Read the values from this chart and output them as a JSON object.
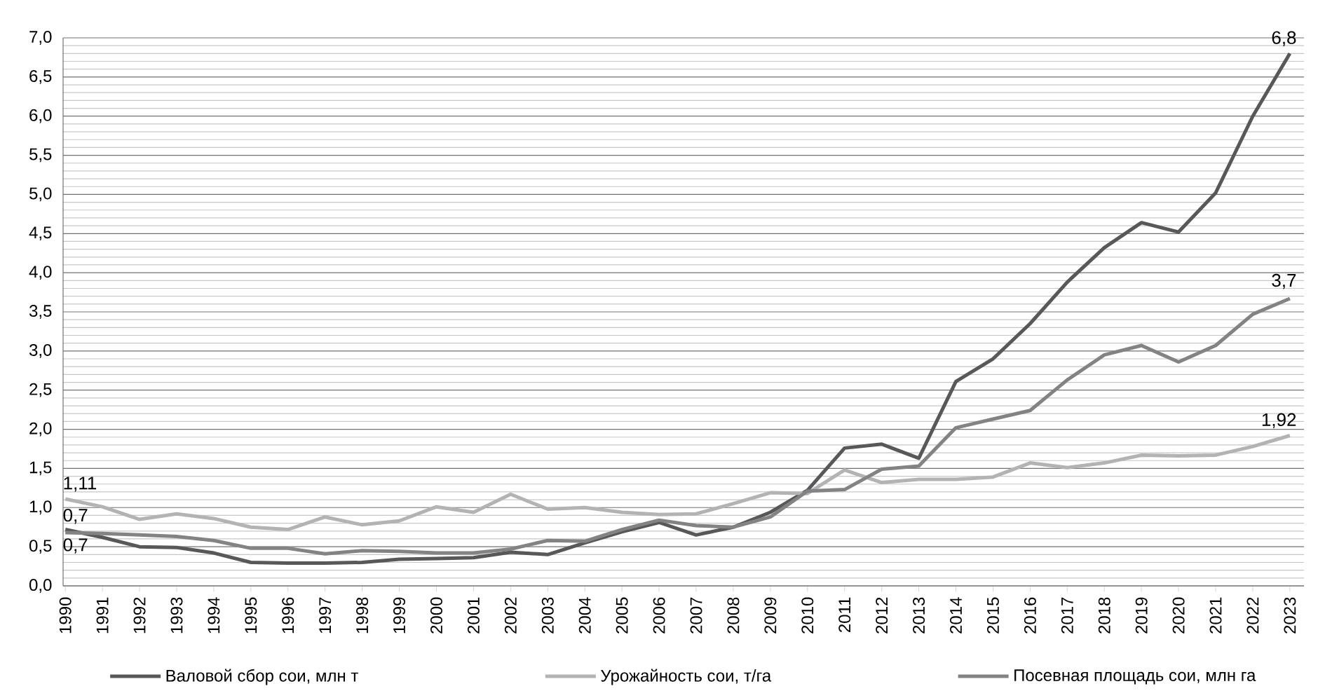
{
  "chart_data": {
    "type": "line",
    "categories": [
      "1990",
      "1991",
      "1992",
      "1993",
      "1994",
      "1995",
      "1996",
      "1997",
      "1998",
      "1999",
      "2000",
      "2001",
      "2002",
      "2003",
      "2004",
      "2005",
      "2006",
      "2007",
      "2008",
      "2009",
      "2010",
      "2011",
      "2012",
      "2013",
      "2014",
      "2015",
      "2016",
      "2017",
      "2018",
      "2019",
      "2020",
      "2021",
      "2022",
      "2023"
    ],
    "series": [
      {
        "name": "Валовой сбор сои, млн т",
        "color": "#58585a",
        "values": [
          0.72,
          0.62,
          0.5,
          0.49,
          0.42,
          0.3,
          0.29,
          0.29,
          0.3,
          0.34,
          0.35,
          0.36,
          0.43,
          0.4,
          0.55,
          0.69,
          0.81,
          0.65,
          0.75,
          0.94,
          1.22,
          1.76,
          1.81,
          1.63,
          2.61,
          2.9,
          3.35,
          3.88,
          4.32,
          4.64,
          4.52,
          5.02,
          6.0,
          6.8
        ]
      },
      {
        "name": "Урожайность сои, т/га",
        "color": "#b3b3b5",
        "values": [
          1.11,
          1.01,
          0.85,
          0.92,
          0.86,
          0.75,
          0.72,
          0.88,
          0.78,
          0.83,
          1.01,
          0.94,
          1.17,
          0.98,
          1.0,
          0.94,
          0.91,
          0.92,
          1.05,
          1.19,
          1.18,
          1.48,
          1.32,
          1.36,
          1.36,
          1.39,
          1.57,
          1.51,
          1.57,
          1.67,
          1.66,
          1.67,
          1.78,
          1.92
        ]
      },
      {
        "name": "Посевная площадь сои, млн га",
        "color": "#838385",
        "values": [
          0.68,
          0.67,
          0.65,
          0.63,
          0.58,
          0.48,
          0.48,
          0.41,
          0.45,
          0.44,
          0.42,
          0.42,
          0.47,
          0.58,
          0.57,
          0.72,
          0.84,
          0.77,
          0.75,
          0.88,
          1.21,
          1.23,
          1.49,
          1.53,
          2.02,
          2.13,
          2.24,
          2.63,
          2.95,
          3.07,
          2.86,
          3.07,
          3.47,
          3.67
        ]
      }
    ],
    "ylim": [
      0,
      7
    ],
    "yticks": [
      {
        "value": 0,
        "label": "0,0"
      },
      {
        "value": 0.5,
        "label": "0,5"
      },
      {
        "value": 1,
        "label": "1,0"
      },
      {
        "value": 1.5,
        "label": "1,5"
      },
      {
        "value": 2,
        "label": "2,0"
      },
      {
        "value": 2.5,
        "label": "2,5"
      },
      {
        "value": 3,
        "label": "3,0"
      },
      {
        "value": 3.5,
        "label": "3,5"
      },
      {
        "value": 4,
        "label": "4,0"
      },
      {
        "value": 4.5,
        "label": "4,5"
      },
      {
        "value": 5,
        "label": "5,0"
      },
      {
        "value": 5.5,
        "label": "5,5"
      },
      {
        "value": 6,
        "label": "6,0"
      },
      {
        "value": 6.5,
        "label": "6,5"
      },
      {
        "value": 7,
        "label": "7,0"
      }
    ],
    "annotations": [
      {
        "text": "1,11",
        "x": "1990",
        "y": 1.11
      },
      {
        "text": "0,7",
        "x": "1990",
        "y": 0.7
      },
      {
        "text": "0,7",
        "x": "1990",
        "y": 0.7
      },
      {
        "text": "6,8",
        "x": "2023",
        "y": 6.8
      },
      {
        "text": "3,7",
        "x": "2023",
        "y": 3.7
      },
      {
        "text": "1,92",
        "x": "2023",
        "y": 1.92
      }
    ],
    "grid": "y",
    "legend": "bottom",
    "marker": "none",
    "line_style": "solid"
  }
}
